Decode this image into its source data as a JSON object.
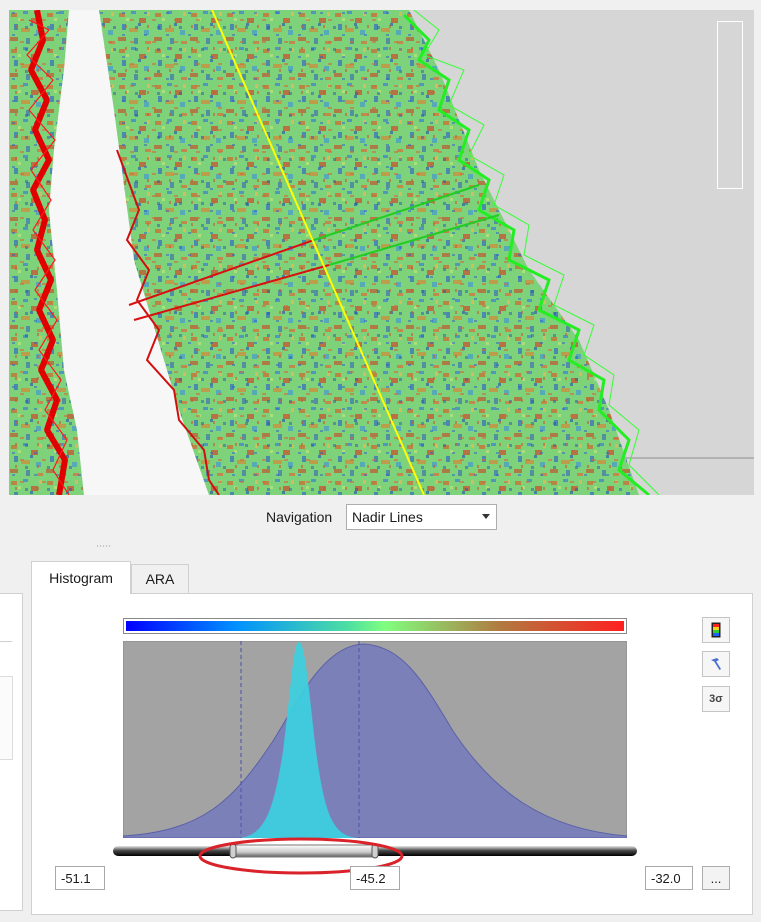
{
  "navigation": {
    "label": "Navigation",
    "selected": "Nadir Lines"
  },
  "tabs": [
    {
      "label": "Histogram",
      "active": true
    },
    {
      "label": "ARA",
      "active": false
    }
  ],
  "histogram": {
    "min_value": "-51.1",
    "mid_value": "-45.2",
    "max_value": "-32.0",
    "more_label": "...",
    "sigma_label": "3σ",
    "colormap": [
      "#0000ff",
      "#0090ff",
      "#50e0a0",
      "#80ff80",
      "#b07a40",
      "#ff2020"
    ],
    "full_distribution_color": "#7b81b8",
    "selection_distribution_color": "#3ccfe0",
    "plot_background": "#a3a3a3"
  },
  "icons": {
    "colormap": "colormap-icon",
    "reset": "hammer-icon"
  },
  "map_colors": {
    "background": "#d6d6d6",
    "swath_base": "#7cd87a",
    "nadir_line": "#ffff00",
    "track_red": "#e00000",
    "track_green": "#20ee20",
    "annotation": "#d9222a"
  }
}
